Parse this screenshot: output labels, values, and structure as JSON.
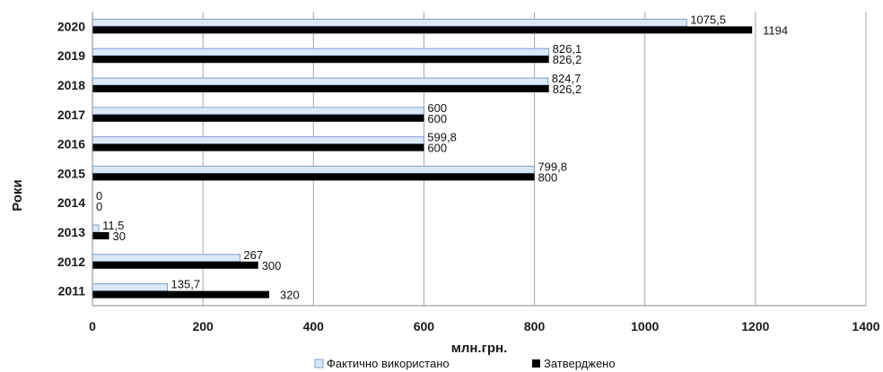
{
  "chart_data": {
    "type": "bar",
    "orientation": "horizontal",
    "categories": [
      "2020",
      "2019",
      "2018",
      "2017",
      "2016",
      "2015",
      "2014",
      "2013",
      "2012",
      "2011"
    ],
    "series": [
      {
        "name": "Фактично використано",
        "values": [
          1075.5,
          826.1,
          824.7,
          600,
          599.8,
          799.8,
          0,
          11.5,
          267,
          135.7
        ],
        "labels": [
          "1075,5",
          "826,1",
          "824,7",
          "600",
          "599,8",
          "799,8",
          "0",
          "11,5",
          "267",
          "135,7"
        ],
        "color": "#dbe8f8",
        "stroke": "#7f9fcf"
      },
      {
        "name": "Затверджено",
        "values": [
          1194,
          826.2,
          826.2,
          600,
          600,
          800,
          0,
          30,
          300,
          320
        ],
        "labels": [
          "1194",
          "826,2",
          "826,2",
          "600",
          "600",
          "800",
          "0",
          "30",
          "300",
          "320"
        ],
        "color": "#000000",
        "stroke": "#000000"
      }
    ],
    "xlabel": "млн.грн.",
    "ylabel": "Роки",
    "xlim": [
      0,
      1400
    ],
    "xticks": [
      0,
      200,
      400,
      600,
      800,
      1000,
      1200,
      1400
    ],
    "grid": true,
    "legend_position": "bottom-center"
  }
}
